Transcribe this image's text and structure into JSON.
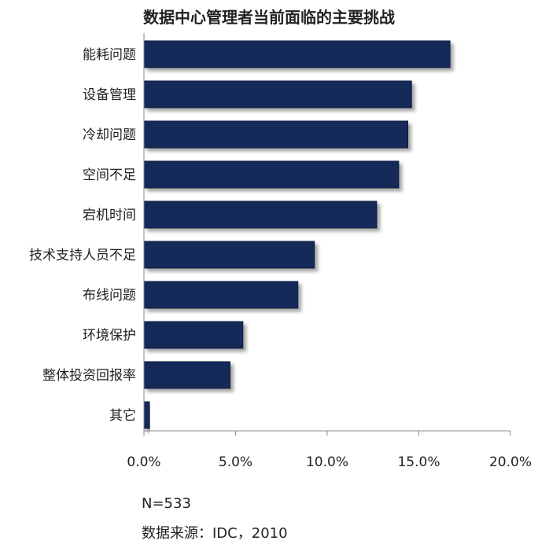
{
  "chart_data": {
    "type": "bar",
    "orientation": "horizontal",
    "title": "数据中心管理者当前面临的主要挑战",
    "categories": [
      "能耗问题",
      "设备管理",
      "冷却问题",
      "空间不足",
      "宕机时间",
      "技术支持人员不足",
      "布线问题",
      "环境保护",
      "整体投资回报率",
      "其它"
    ],
    "values": [
      16.7,
      14.6,
      14.4,
      13.9,
      12.7,
      9.3,
      8.4,
      5.4,
      4.7,
      0.3
    ],
    "xlim": [
      0,
      20
    ],
    "x_ticks": [
      0,
      5,
      10,
      15,
      20
    ],
    "x_tick_labels": [
      "0.0%",
      "5.0%",
      "10.0%",
      "15.0%",
      "20.0%"
    ],
    "grid": false,
    "bar_color": "#14295a"
  },
  "footer": {
    "sample_size": "N=533",
    "source": "数据来源：IDC，2010"
  }
}
